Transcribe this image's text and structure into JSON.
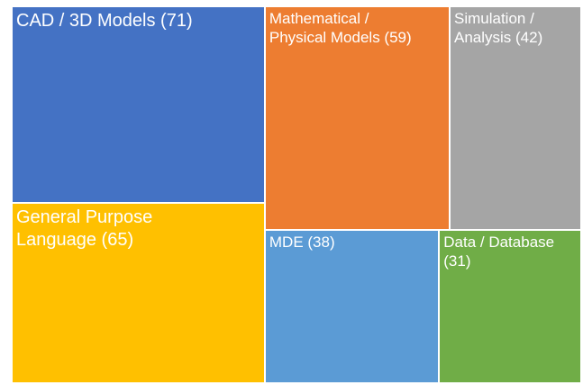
{
  "chart_data": {
    "type": "treemap",
    "categories": [
      "CAD / 3D Models (71)",
      "General Purpose Language (65)",
      "Mathematical / Physical Models (59)",
      "Simulation / Analysis (42)",
      "MDE (38)",
      "Data / Database (31)"
    ],
    "values": [
      71,
      65,
      59,
      42,
      38,
      31
    ],
    "colors": [
      "#4472c4",
      "#ffc000",
      "#ed7d31",
      "#a5a5a5",
      "#5b9bd5",
      "#70ad47"
    ]
  }
}
